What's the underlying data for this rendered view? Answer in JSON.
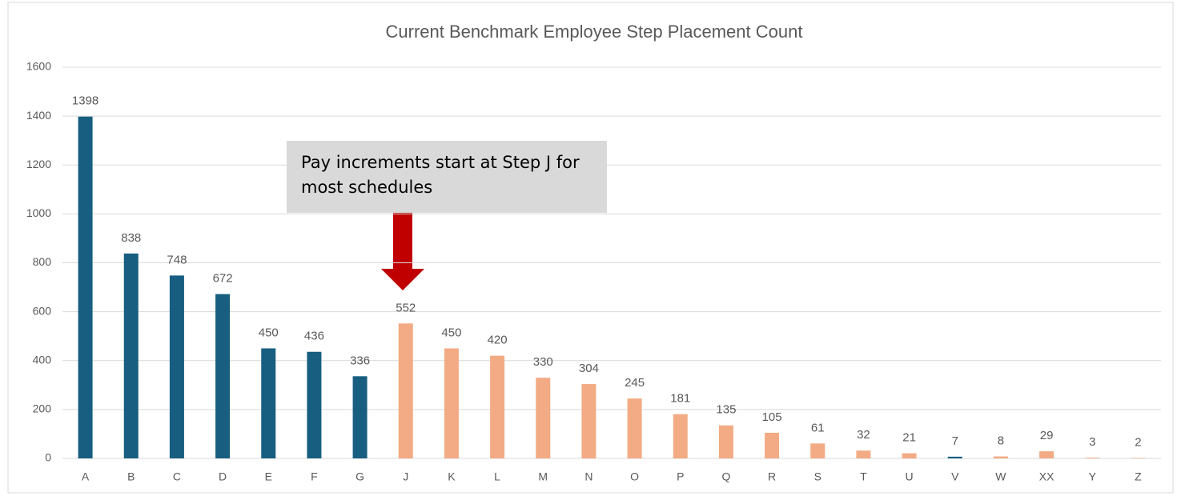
{
  "chart_data": {
    "type": "bar",
    "title": "Current Benchmark Employee Step Placement Count",
    "categories": [
      "A",
      "B",
      "C",
      "D",
      "E",
      "F",
      "G",
      "J",
      "K",
      "L",
      "M",
      "N",
      "O",
      "P",
      "Q",
      "R",
      "S",
      "T",
      "U",
      "V",
      "W",
      "XX",
      "Y",
      "Z"
    ],
    "values": [
      1398,
      838,
      748,
      672,
      450,
      436,
      336,
      552,
      450,
      420,
      330,
      304,
      245,
      181,
      135,
      105,
      61,
      32,
      21,
      7,
      8,
      29,
      3,
      2
    ],
    "colors": [
      "#175e80",
      "#175e80",
      "#175e80",
      "#175e80",
      "#175e80",
      "#175e80",
      "#175e80",
      "#f2ab84",
      "#f2ab84",
      "#f2ab84",
      "#f2ab84",
      "#f2ab84",
      "#f2ab84",
      "#f2ab84",
      "#f2ab84",
      "#f2ab84",
      "#f2ab84",
      "#f2ab84",
      "#f2ab84",
      "#175e80",
      "#f2ab84",
      "#f2ab84",
      "#f2ab84",
      "#f2ab84"
    ],
    "ylim": [
      0,
      1600
    ],
    "yticks": [
      0,
      200,
      400,
      600,
      800,
      1000,
      1200,
      1400,
      1600
    ],
    "grid": true,
    "annotation": "Pay increments start at Step J for most schedules"
  }
}
